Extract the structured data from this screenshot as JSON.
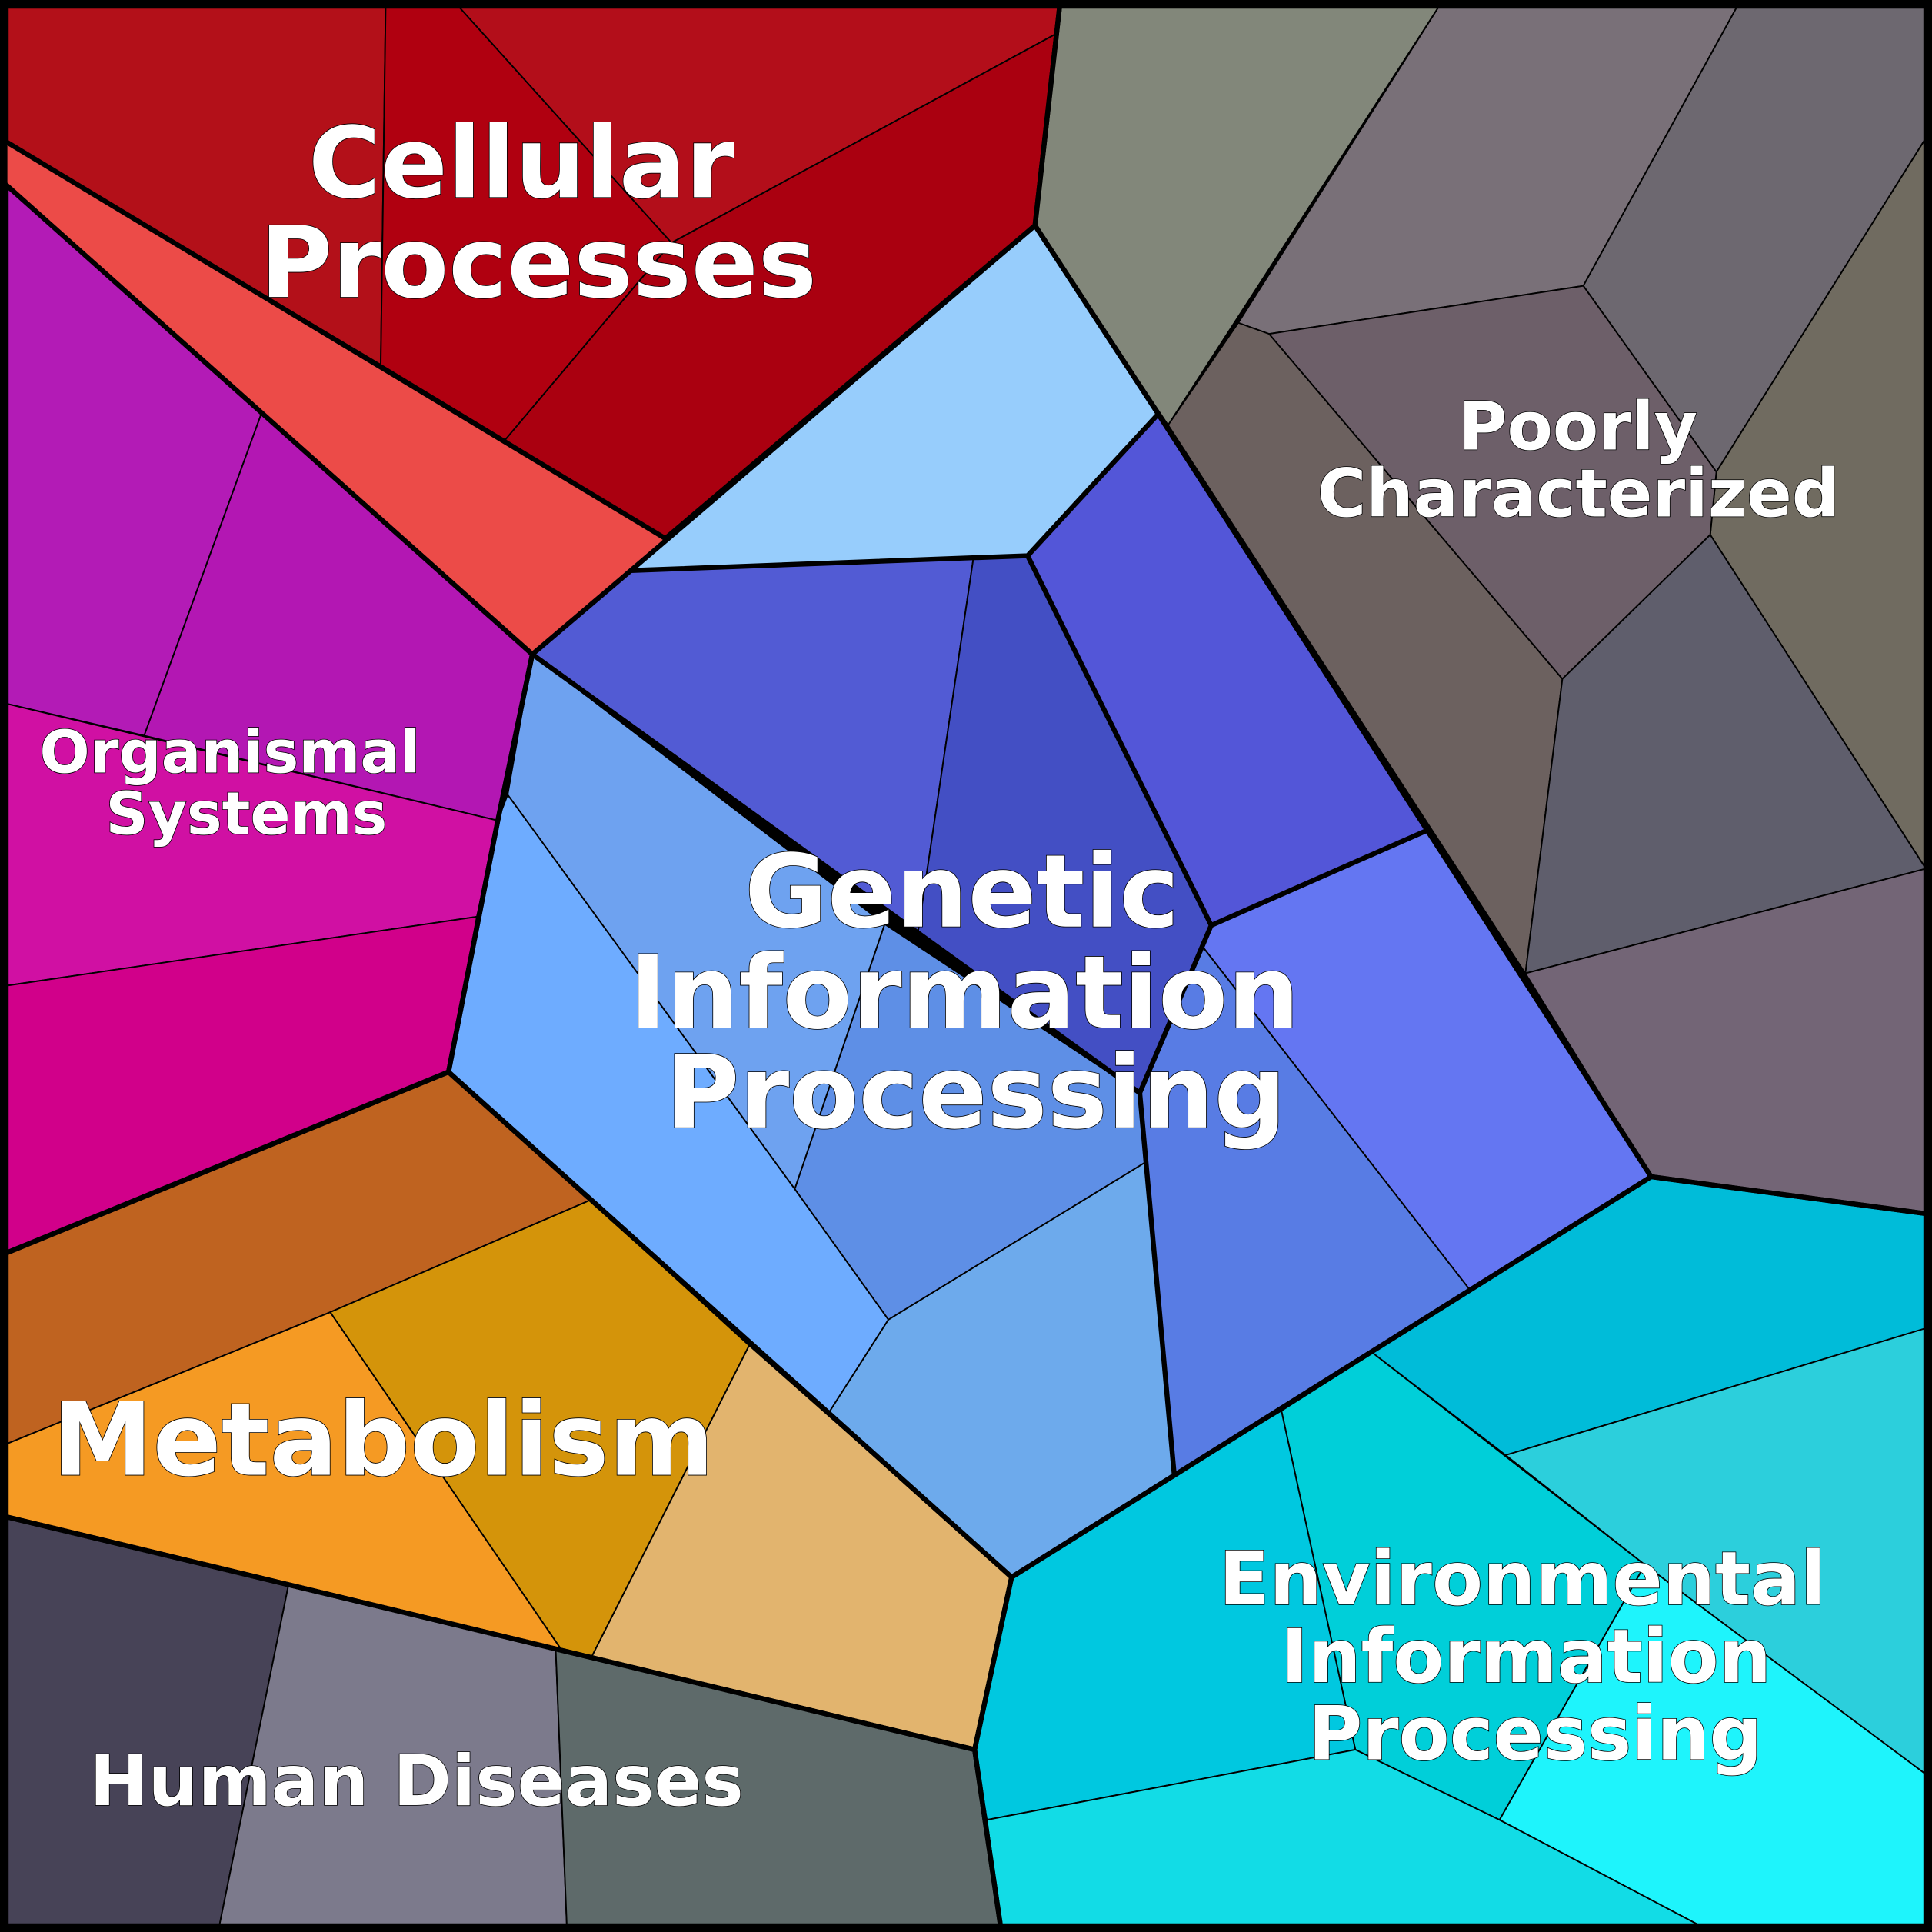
{
  "groups": [
    {
      "label_lines": [
        "Cellular",
        "Processes"
      ],
      "color": "#b00010"
    },
    {
      "label_lines": [
        "Organismal",
        "Systems"
      ],
      "color": "#b317b3"
    },
    {
      "label_lines": [
        "Genetic",
        "Information",
        "Processing"
      ],
      "color": "#525bd4"
    },
    {
      "label_lines": [
        "Poorly",
        "Characterized"
      ],
      "color": "#6d6870"
    },
    {
      "label_lines": [
        "Metabolism"
      ],
      "color": "#f59a23"
    },
    {
      "label_lines": [
        "Human Diseases"
      ],
      "color": "#5e6a6a"
    },
    {
      "label_lines": [
        "Environmental",
        "Information",
        "Processing"
      ],
      "color": "#00c8e0"
    }
  ]
}
